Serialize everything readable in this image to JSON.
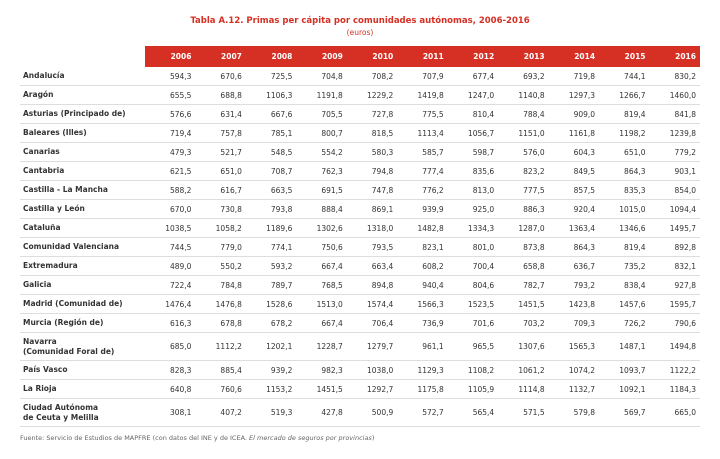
{
  "header": {
    "title": "Tabla A.12.  Primas per cápita por comunidades autónomas, 2006-2016",
    "subtitle": "(euros)"
  },
  "table": {
    "columns": [
      "2006",
      "2007",
      "2008",
      "2009",
      "2010",
      "2011",
      "2012",
      "2013",
      "2014",
      "2015",
      "2016"
    ],
    "rows": [
      [
        "Andalucía",
        "594,3",
        "670,6",
        "725,5",
        "704,8",
        "708,2",
        "707,9",
        "677,4",
        "693,2",
        "719,8",
        "744,1",
        "830,2"
      ],
      [
        "Aragón",
        "655,5",
        "688,8",
        "1106,3",
        "1191,8",
        "1229,2",
        "1419,8",
        "1247,0",
        "1140,8",
        "1297,3",
        "1266,7",
        "1460,0"
      ],
      [
        "Asturias (Principado de)",
        "576,6",
        "631,4",
        "667,6",
        "705,5",
        "727,8",
        "775,5",
        "810,4",
        "788,4",
        "909,0",
        "819,4",
        "841,8"
      ],
      [
        "Baleares (Illes)",
        "719,4",
        "757,8",
        "785,1",
        "800,7",
        "818,5",
        "1113,4",
        "1056,7",
        "1151,0",
        "1161,8",
        "1198,2",
        "1239,8"
      ],
      [
        "Canarias",
        "479,3",
        "521,7",
        "548,5",
        "554,2",
        "580,3",
        "585,7",
        "598,7",
        "576,0",
        "604,3",
        "651,0",
        "779,2"
      ],
      [
        "Cantabria",
        "621,5",
        "651,0",
        "708,7",
        "762,3",
        "794,8",
        "777,4",
        "835,6",
        "823,2",
        "849,5",
        "864,3",
        "903,1"
      ],
      [
        "Castilla - La Mancha",
        "588,2",
        "616,7",
        "663,5",
        "691,5",
        "747,8",
        "776,2",
        "813,0",
        "777,5",
        "857,5",
        "835,3",
        "854,0"
      ],
      [
        "Castilla y León",
        "670,0",
        "730,8",
        "793,8",
        "888,4",
        "869,1",
        "939,9",
        "925,0",
        "886,3",
        "920,4",
        "1015,0",
        "1094,4"
      ],
      [
        "Cataluña",
        "1038,5",
        "1058,2",
        "1189,6",
        "1302,6",
        "1318,0",
        "1482,8",
        "1334,3",
        "1287,0",
        "1363,4",
        "1346,6",
        "1495,7"
      ],
      [
        "Comunidad Valenciana",
        "744,5",
        "779,0",
        "774,1",
        "750,6",
        "793,5",
        "823,1",
        "801,0",
        "873,8",
        "864,3",
        "819,4",
        "892,8"
      ],
      [
        "Extremadura",
        "489,0",
        "550,2",
        "593,2",
        "667,4",
        "663,4",
        "608,2",
        "700,4",
        "658,8",
        "636,7",
        "735,2",
        "832,1"
      ],
      [
        "Galicia",
        "722,4",
        "784,8",
        "789,7",
        "768,5",
        "894,8",
        "940,4",
        "804,6",
        "782,7",
        "793,2",
        "838,4",
        "927,8"
      ],
      [
        "Madrid (Comunidad de)",
        "1476,4",
        "1476,8",
        "1528,6",
        "1513,0",
        "1574,4",
        "1566,3",
        "1523,5",
        "1451,5",
        "1423,8",
        "1457,6",
        "1595,7"
      ],
      [
        "Murcia (Región de)",
        "616,3",
        "678,8",
        "678,2",
        "667,4",
        "706,4",
        "736,9",
        "701,6",
        "703,2",
        "709,3",
        "726,2",
        "790,6"
      ],
      [
        "Navarra\n(Comunidad Foral de)",
        "685,0",
        "1112,2",
        "1202,1",
        "1228,7",
        "1279,7",
        "961,1",
        "965,5",
        "1307,6",
        "1565,3",
        "1487,1",
        "1494,8"
      ],
      [
        "País Vasco",
        "828,3",
        "885,4",
        "939,2",
        "982,3",
        "1038,0",
        "1129,3",
        "1108,2",
        "1061,2",
        "1074,2",
        "1093,7",
        "1122,2"
      ],
      [
        "La Rioja",
        "640,8",
        "760,6",
        "1153,2",
        "1451,5",
        "1292,7",
        "1175,8",
        "1105,9",
        "1114,8",
        "1132,7",
        "1092,1",
        "1184,3"
      ],
      [
        "Ciudad Autónoma\nde Ceuta y Melilla",
        "308,1",
        "407,2",
        "519,3",
        "427,8",
        "500,9",
        "572,7",
        "565,4",
        "571,5",
        "579,8",
        "569,7",
        "665,0"
      ]
    ]
  },
  "footer": {
    "source": [
      "Fuente: Servicio de Estudios de MAPFRE (con datos del INE y de ICEA. ",
      "El mercado de seguros por provincias",
      ")"
    ]
  }
}
